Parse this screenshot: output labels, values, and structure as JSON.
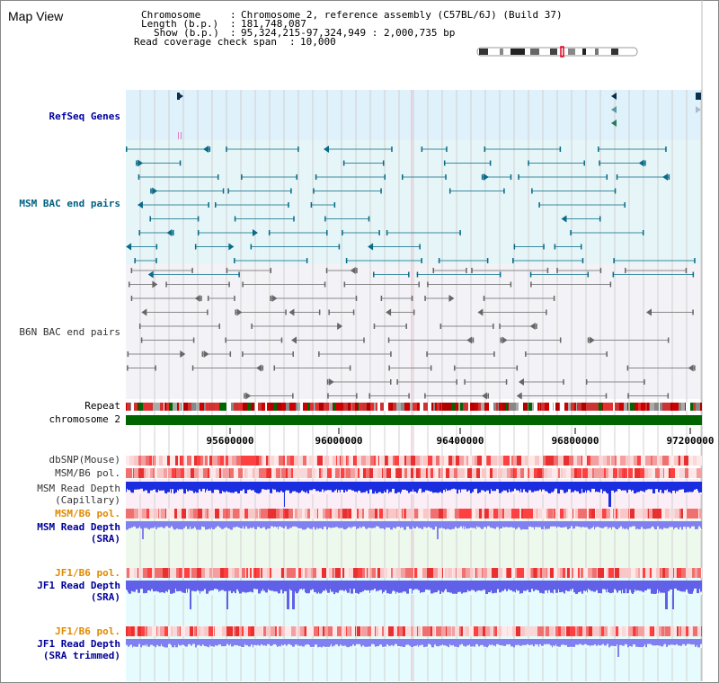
{
  "title": "Map View",
  "info": {
    "chromosome_label": "Chromosome",
    "chromosome_value": "Chromosome 2, reference assembly (C57BL/6J) (Build 37)",
    "length_label": "Length (b.p.)",
    "length_value": "181,748,087",
    "show_label": "Show (b.p.)",
    "show_value": "95,324,215-97,324,949 : 2,000,735 bp",
    "coverage_label": "Read coverage check span",
    "coverage_value": "10,000"
  },
  "tracks": {
    "refseq": "RefSeq Genes",
    "msm_bac": "MSM BAC end pairs",
    "b6n_bac": "B6N BAC end pairs",
    "repeat": "Repeat",
    "chromosome": "chromosome 2",
    "dbsnp": "dbSNP(Mouse)",
    "msm_pol1": "MSM/B6 pol.",
    "msm_depth_cap_1": "MSM Read Depth",
    "msm_depth_cap_2": "(Capillary)",
    "msm_pol2": "MSM/B6 pol.",
    "msm_depth_sra_1": "MSM Read Depth",
    "msm_depth_sra_2": "(SRA)",
    "jf1_pol1": "JF1/B6 pol.",
    "jf1_depth_sra_1": "JF1 Read Depth",
    "jf1_depth_sra_2": "(SRA)",
    "jf1_pol2": "JF1/B6 pol.",
    "jf1_depth_trim_1": "JF1 Read Depth",
    "jf1_depth_trim_2": "(SRA trimmed)"
  },
  "axis_ticks": [
    "95600000",
    "96000000",
    "96400000",
    "96800000",
    "97200000"
  ],
  "colors": {
    "refseq_bg": "#dff1fb",
    "msm_bg": "#e6f6f8",
    "b6n_bg": "#f3f3f7",
    "chromosome_bar": "#006400",
    "depth_blue": "#1a2ee0",
    "depth_light": "#8080f0",
    "pol_red": "#f04040"
  }
}
